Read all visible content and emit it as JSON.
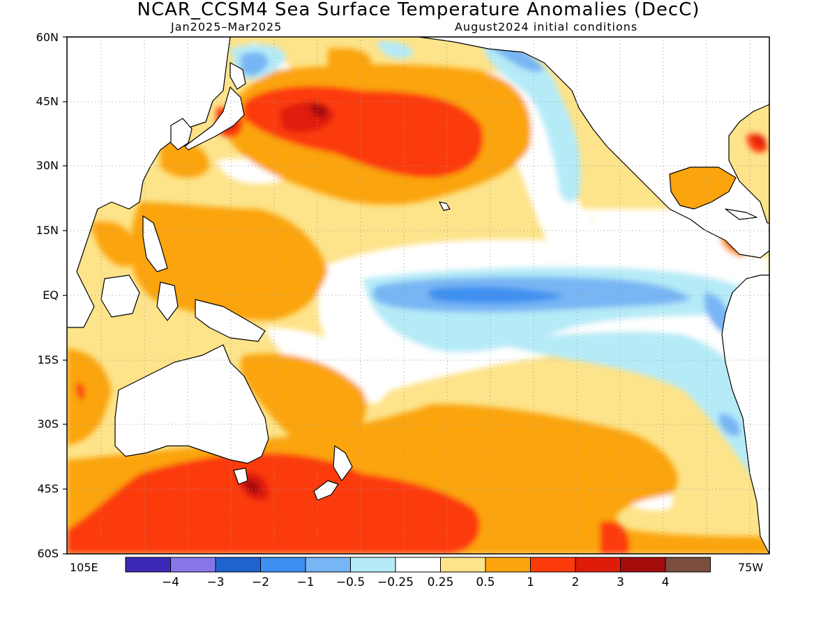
{
  "title": "NCAR_CCSM4 Sea Surface Temperature Anomalies (DecC)",
  "subtitle_left": "Jan2025–Mar2025",
  "subtitle_right": "August2024 initial conditions",
  "lat_labels": [
    "60N",
    "45N",
    "30N",
    "15N",
    "EQ",
    "15S",
    "30S",
    "45S",
    "60S"
  ],
  "lon_labels": {
    "left": "105E",
    "right": "75W"
  },
  "colorbar": {
    "labels": [
      "−4",
      "−3",
      "−2",
      "−1",
      "−0.5",
      "−0.25",
      "0.25",
      "0.5",
      "1",
      "2",
      "3",
      "4"
    ],
    "colors": [
      "#3b28b5",
      "#8776ea",
      "#1f63d0",
      "#3d8ff1",
      "#78b5f4",
      "#b5ebf7",
      "#ffffff",
      "#fde38a",
      "#fba40e",
      "#fc3a0a",
      "#df1c0a",
      "#a40c0c",
      "#7a4d3e"
    ]
  },
  "colors": {
    "land": "#ffffff",
    "coast": "#000000",
    "grid": "#9a9a9a"
  }
}
